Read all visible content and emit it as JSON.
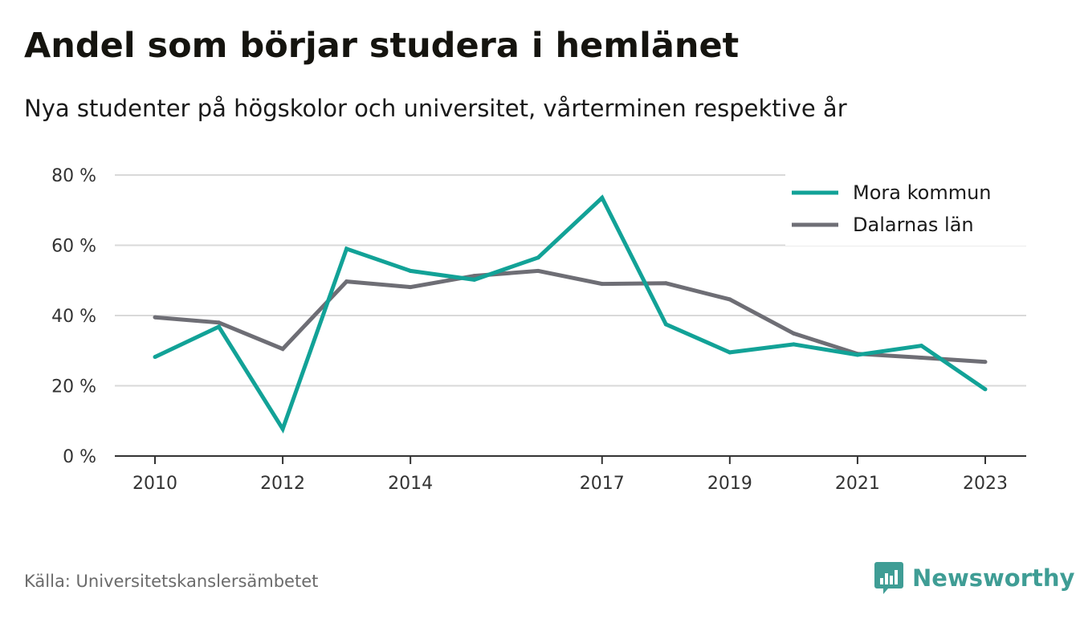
{
  "header": {
    "title": "Andel som börjar studera i hemlänet",
    "subtitle": "Nya studenter på högskolor och universitet, vårterminen respektive år"
  },
  "footer": {
    "source": "Källa: Universitetskanslersämbetet",
    "brand": "Newsworthy"
  },
  "colors": {
    "mora": "#12a297",
    "dalarna": "#6e6e75",
    "grid": "#d9d9d9",
    "axis": "#333333",
    "brand": "#3f9d95"
  },
  "chart_data": {
    "type": "line",
    "title": "Andel som börjar studera i hemlänet",
    "subtitle": "Nya studenter på högskolor och universitet, vårterminen respektive år",
    "xlabel": "",
    "ylabel": "",
    "x": [
      2010,
      2011,
      2012,
      2013,
      2014,
      2015,
      2016,
      2017,
      2018,
      2019,
      2020,
      2021,
      2022,
      2023
    ],
    "x_ticks": [
      "2010",
      "2012",
      "2014",
      "2017",
      "2019",
      "2021",
      "2023"
    ],
    "y_ticks": [
      "0 %",
      "20 %",
      "40 %",
      "60 %",
      "80 %"
    ],
    "y_tick_values": [
      0,
      20,
      40,
      60,
      80
    ],
    "ylim": [
      0,
      80
    ],
    "xlim": [
      2010,
      2023
    ],
    "grid": true,
    "legend_position": "top-right",
    "series": [
      {
        "name": "Mora kommun",
        "color": "#12a297",
        "values": [
          28.2,
          36.8,
          7.7,
          59.0,
          52.7,
          50.2,
          56.5,
          73.5,
          37.5,
          29.5,
          31.8,
          28.8,
          31.4,
          19.0
        ]
      },
      {
        "name": "Dalarnas län",
        "color": "#6e6e75",
        "values": [
          39.5,
          38.0,
          30.5,
          49.7,
          48.1,
          51.3,
          52.7,
          49.0,
          49.2,
          44.6,
          34.9,
          29.1,
          28.0,
          26.8
        ]
      }
    ]
  }
}
